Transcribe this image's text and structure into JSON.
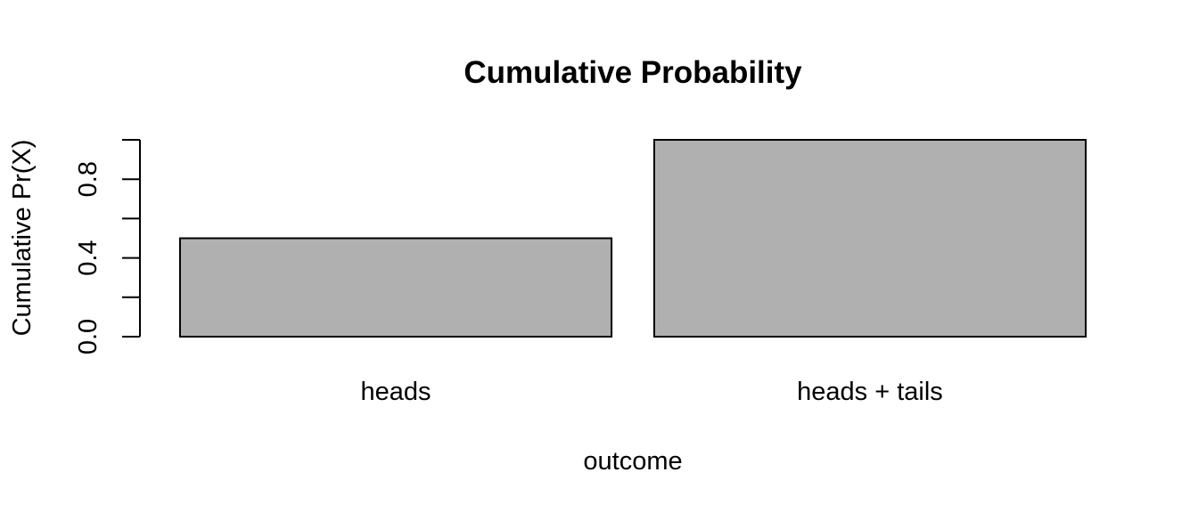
{
  "chart_data": {
    "type": "bar",
    "title": "Cumulative Probability",
    "xlabel": "outcome",
    "ylabel": "Cumulative Pr(X)",
    "categories": [
      "heads",
      "heads + tails"
    ],
    "values": [
      0.5,
      1.0
    ],
    "ylim": [
      0,
      1
    ],
    "yticks": [
      0.0,
      0.2,
      0.4,
      0.6,
      0.8,
      1.0
    ],
    "ytick_labels": [
      "0.0",
      "",
      "0.4",
      "",
      "0.8",
      ""
    ],
    "bar_color": "#b0b0b0",
    "grid": false,
    "legend": "none"
  }
}
